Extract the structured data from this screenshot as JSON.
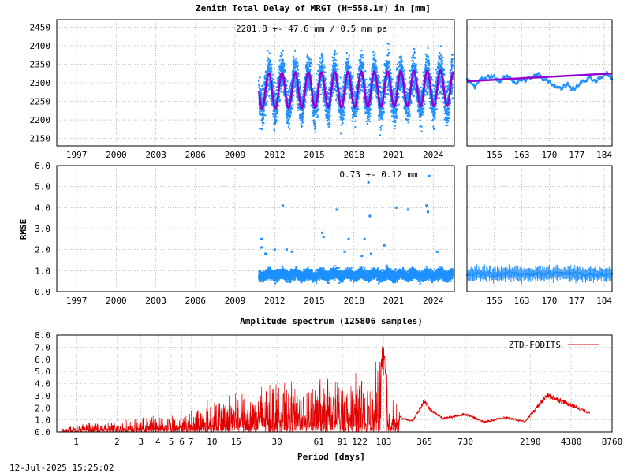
{
  "footer_date": "12-Jul-2025 15:25:02",
  "chart_data": [
    {
      "id": "ztd_timeseries",
      "type": "scatter",
      "title": "Zenith Total Delay of MRGT (H=558.1m) in [mm]",
      "annotation": "2281.8 +-  47.6 mm /  0.5 mm pa",
      "xlabel": "",
      "ylabel": "",
      "xlim": [
        1995.5,
        2025.6
      ],
      "ylim": [
        2130,
        2470
      ],
      "xticks": [
        "1997",
        "2000",
        "2003",
        "2006",
        "2009",
        "2012",
        "2015",
        "2018",
        "2021",
        "2024"
      ],
      "yticks": [
        "2150",
        "2200",
        "2250",
        "2300",
        "2350",
        "2400",
        "2450"
      ],
      "data_start": 2010.8,
      "data_end": 2025.5,
      "model": {
        "mean": 2281.8,
        "amplitude": 47.6,
        "trend_mm_per_year": 0.5,
        "period_years": 1.0
      },
      "series": [
        {
          "color": "#1e90ff",
          "role": "observations"
        },
        {
          "color": "#9400d3",
          "role": "fitted-model"
        }
      ]
    },
    {
      "id": "ztd_zoom",
      "type": "scatter",
      "xlim": [
        149,
        186
      ],
      "ylim": [
        2130,
        2470
      ],
      "xticks": [
        "156",
        "163",
        "170",
        "177",
        "184"
      ],
      "model_line": [
        [
          149,
          2304
        ],
        [
          186,
          2325
        ]
      ]
    },
    {
      "id": "rmse_timeseries",
      "type": "scatter",
      "ylabel": "RMSE",
      "annotation": "0.73 +-  0.12 mm",
      "xlim": [
        1995.5,
        2025.6
      ],
      "ylim": [
        0,
        6
      ],
      "xticks": [
        "1997",
        "2000",
        "2003",
        "2006",
        "2009",
        "2012",
        "2015",
        "2018",
        "2021",
        "2024"
      ],
      "yticks": [
        "0.0",
        "1.0",
        "2.0",
        "3.0",
        "4.0",
        "5.0",
        "6.0"
      ],
      "typical_value": 0.8,
      "outliers": [
        [
          2011.0,
          2.5
        ],
        [
          2011.0,
          2.1
        ],
        [
          2011.3,
          1.8
        ],
        [
          2012.0,
          2.0
        ],
        [
          2012.6,
          4.1
        ],
        [
          2012.9,
          2.0
        ],
        [
          2013.3,
          1.9
        ],
        [
          2015.6,
          2.8
        ],
        [
          2015.7,
          2.6
        ],
        [
          2016.7,
          3.9
        ],
        [
          2017.3,
          1.9
        ],
        [
          2017.6,
          2.5
        ],
        [
          2018.6,
          1.7
        ],
        [
          2018.8,
          2.5
        ],
        [
          2019.1,
          5.2
        ],
        [
          2019.2,
          3.6
        ],
        [
          2019.3,
          1.8
        ],
        [
          2020.3,
          2.2
        ],
        [
          2021.2,
          4.0
        ],
        [
          2022.1,
          3.9
        ],
        [
          2023.5,
          4.1
        ],
        [
          2023.6,
          3.8
        ],
        [
          2023.7,
          5.5
        ],
        [
          2024.3,
          1.9
        ]
      ]
    },
    {
      "id": "rmse_zoom",
      "type": "scatter",
      "xlim": [
        149,
        186
      ],
      "ylim": [
        0,
        6
      ],
      "xticks": [
        "156",
        "163",
        "170",
        "177",
        "184"
      ]
    },
    {
      "id": "amplitude_spectrum",
      "type": "line",
      "title": "Amplitude spectrum (125806 samples)",
      "xlabel": "Period [days]",
      "ylabel": "",
      "xscale": "log",
      "xlim": [
        0.72,
        8760
      ],
      "ylim": [
        0,
        8
      ],
      "xticks": [
        "1",
        "2",
        "3",
        "4",
        "5",
        "6",
        "7",
        "10",
        "15",
        "30",
        "61",
        "91",
        "122",
        "183",
        "365",
        "730",
        "2190",
        "4380",
        "8760"
      ],
      "yticks": [
        "0.0",
        "1.0",
        "2.0",
        "3.0",
        "4.0",
        "5.0",
        "6.0",
        "7.0",
        "8.0"
      ],
      "legend": {
        "label": "ZTD-FODITS",
        "position": "top-right"
      },
      "series": [
        {
          "name": "ZTD-FODITS",
          "color": "#e00000",
          "peaks": [
            [
              0.8,
              0.3
            ],
            [
              1,
              0.5
            ],
            [
              2,
              0.6
            ],
            [
              3,
              0.8
            ],
            [
              4,
              1.0
            ],
            [
              5,
              1.1
            ],
            [
              7,
              1.3
            ],
            [
              10,
              2.0
            ],
            [
              15,
              2.3
            ],
            [
              20,
              2.8
            ],
            [
              30,
              3.0
            ],
            [
              45,
              2.9
            ],
            [
              61,
              3.2
            ],
            [
              75,
              3.3
            ],
            [
              91,
              3.5
            ],
            [
              122,
              3.2
            ],
            [
              150,
              2.6
            ],
            [
              183,
              7.8
            ],
            [
              200,
              2.2
            ],
            [
              250,
              1.2
            ],
            [
              300,
              1.0
            ],
            [
              365,
              2.8
            ],
            [
              400,
              2.0
            ],
            [
              500,
              1.2
            ],
            [
              730,
              1.6
            ],
            [
              1000,
              0.9
            ],
            [
              1460,
              1.3
            ],
            [
              2000,
              0.9
            ],
            [
              2920,
              3.3
            ],
            [
              6000,
              1.7
            ]
          ]
        }
      ]
    }
  ]
}
